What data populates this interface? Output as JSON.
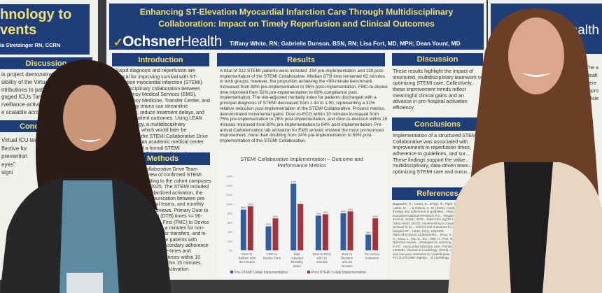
{
  "left_poster": {
    "title_lines": [
      "hnology to",
      "vents"
    ],
    "author": "ia Stretzinger RN, CCRN",
    "discussion_header": "Discussion",
    "discussion_lines": [
      "is project demonstrated",
      "sibility of the Virtual ICU",
      "ntributions to patient",
      "gaged ICUs Target",
      "rveillance activities",
      "e scalable across"
    ],
    "conclusion_header": "Conc",
    "conclusion_lines": [
      "Virtual ICU tech",
      "ffective for",
      "prevention",
      "eyes\"",
      "signi"
    ]
  },
  "main_poster": {
    "title": "Enhancing ST-Elevation Myocardial Infarction Care Through Multidisciplinary Collaboration: Impact on Timely Reperfusion and Clinical Outcomes",
    "logo_a": "Ochsner",
    "logo_b": "Health",
    "authors": "Tiffany White, RN; Gabrielle Dunson, BSN, RN; Lisa Fort, MD, MPH; Dean Yount, MD",
    "introduction": {
      "header": "Introduction",
      "text": "Rapid diagnosis and reperfusion are critical for improving survival with ST-elevation myocardial infarction (STEMI). Multidisciplinary collaboration between Emergency Medical Services (EMS), Emergency Medicine, Transfer Center, and Cardiology teams can streamline workflows, reduce treatment delays, and improve patient outcomes. Using LEAN methodology, a multidisciplinary workgroup, which would later be considered the STEMI Collaborative Drive Team, from an academic medical center implemented a formal STEMI Collaborative Drive to optimize these processes."
    },
    "methods": {
      "header": "Methods",
      "text": "Collaborative Drive Team review of confirmed STEMI relating to the cohort campuses Q2 2025. The STEMI included standardized activation, the communication between pre-hospital teams, and monthly case reviews. Primary Door to Balloon (DTB) times <= 90-minutes, First (FMC) to Device Time with a minutes for non-transfers for transfers, and in-mortality for patients with STEMI. Secondary adherence to guideline-times and processes: times within 10 minutes, within 15 minutes, and Arrival Activation."
    },
    "results": {
      "header": "Results",
      "text": "A total of 312 STEMI patients were included: 194 pre-implementation and 118 post-implementation of the STEMI Collaborative. Median DTB time remained 62 minutes in both groups; however, the proportion achieving the <90-minute benchmark increased from 88% pre-implementation to 95% post-implementation. FMC-to-device time improved from 52% pre-implementation to 69% compliance post-implementation. The risk-adjusted mortality index for patients discharged with a principal diagnosis of STEMI decreased from 1.44 to 1.00, representing a 31% relative reduction post-implementation of the STEMI Collaborative. Process metrics demonstrated incremental gains: Door-to-ECG within 10 minutes increased from 75% pre-implementation to 78% post-implementation, and door-to-decision within 15 minutes improved from 80% pre-implementation to 84% post-implementation. Pre-arrival Catheterization lab activation for EMS arrivals showed the most pronounced improvement, more than doubling from 34% pre-implementation to 69% post-implementation of the STEMI Collaborative."
    },
    "discussion": {
      "header": "Discussion",
      "text": "These results highlight the impact of structured, multidisciplinary teamwork on optimizing STEMI care. Collectively, these improvement trends reflect meaningful clinical gains and an advance in pre-hospital activation efficiency."
    },
    "conclusions": {
      "header": "Conclusions",
      "text": "Implementation of a structured STEMI Collaborative was associated with improvements in reperfusion times, adherence to guidelines, and sur... These findings support the value... multidisciplinary, data-driven team... optimizing STEMI care and outco..."
    },
    "references": {
      "header": "References",
      "text": "Bugiardini, R., Cenko, E., Errigo, R., Pighi, M., Vasiljevic, Z., Lattini, M., ... & Gibson, C. M. (2021). Cardiologist... reperfusion therapy and adherence to guideline... Results from the EuroObservational Research Pro... Registry. European Heart Journal, 42(46), 4576... https://doi.org/10.1093/eurheartj/ehab... Open Heart. (2023). Implementing a comprehensive STEMI protocol to im... metrics and outcomes for patients with in-hospital ST... Heart, 10(1), e002105. https://doi.org/10.1136/openhrt... Zeng, X., Chen, L., Chandra, A., Zhao, L., Ma, G., Ro... Wei, H., Pan, W., & Li, W. (2025). Narrative review... strategies for reducing door-to-balloon time in ST... myocardial infarction care. Frontiers in Cardiova... 12, 1500381. Journal of Cardiology. (2024). Association of ... time and one-year outcomes in hospital patie... Insights from the J-PCI OUTCOME registry... of Cardiology."
    }
  },
  "right_poster": {
    "logo": "Health",
    "text_lines": [
      "Ho",
      "A",
      "R"
    ],
    "text_lines2": [
      "The a",
      "Healt",
      "were",
      "appro",
      "efficie"
    ]
  },
  "chart_data": {
    "type": "bar",
    "title": "STEMI Collaborative Implementation – Outcome and Performance Metrics",
    "categories": [
      "Door to Balloon w/in 90 minutes",
      "FMC to Device Time",
      "Risk Adjusted Mortality Index",
      "Door to ECG w/in 10 minutes",
      "Door to Decision w/in 15 minutes",
      "Pre Arrival Activation"
    ],
    "series": [
      {
        "name": "Pre-STEMI Collab Implementation",
        "values": [
          0.88,
          0.52,
          1.44,
          0.75,
          0.8,
          0.34
        ],
        "labels": [
          "88%",
          "52%",
          "1.44",
          "75%",
          "80%",
          "34%"
        ],
        "color": "#2f5ea3"
      },
      {
        "name": "Post-STEMI Collab Implementation",
        "values": [
          0.95,
          0.69,
          1.0,
          0.78,
          0.84,
          0.69
        ],
        "labels": [
          "95%",
          "69%",
          "1",
          "78%",
          "84%",
          "69%"
        ],
        "color": "#a3323a"
      }
    ],
    "yticks": [
      "0%",
      "20%",
      "40%",
      "60%",
      "80%",
      "100%",
      "120%",
      "140%",
      "160%"
    ],
    "ylim": [
      0,
      1.6
    ],
    "legend": "bottom"
  }
}
